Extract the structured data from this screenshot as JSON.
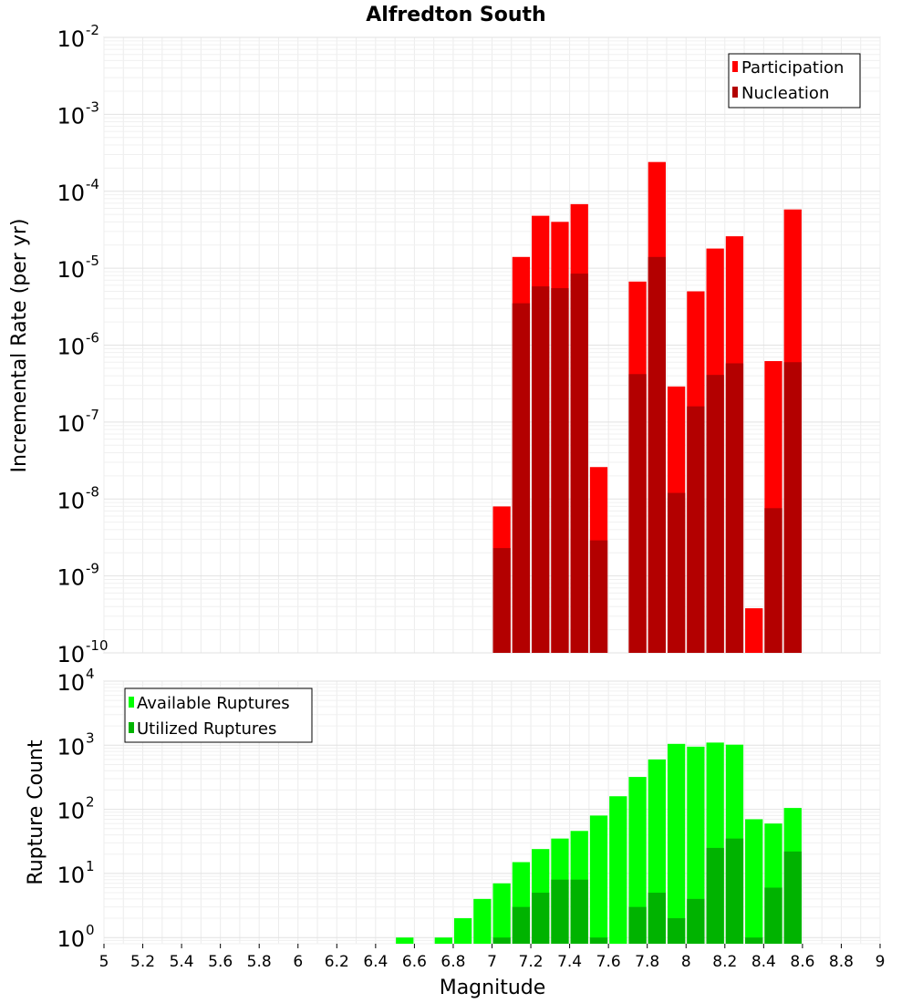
{
  "chart_data": [
    {
      "type": "bar",
      "title": "Alfredton South",
      "xlabel": "",
      "ylabel": "Incremental Rate (per yr)",
      "xlim": [
        5,
        9
      ],
      "ylim": [
        1e-10,
        0.01
      ],
      "yscale": "log",
      "grid": true,
      "legend_position": "top-right",
      "legend": [
        "Participation",
        "Nucleation"
      ],
      "colors": {
        "Participation": "#ff0000",
        "Nucleation": "#b30000"
      },
      "bar_width": 0.1,
      "x": [
        7.0,
        7.1,
        7.2,
        7.3,
        7.4,
        7.5,
        7.7,
        7.8,
        7.9,
        8.0,
        8.1,
        8.2,
        8.3,
        8.4,
        8.5
      ],
      "series": [
        {
          "name": "Participation",
          "values": [
            8e-09,
            1.4e-05,
            4.8e-05,
            4e-05,
            6.8e-05,
            2.6e-08,
            6.7e-06,
            0.00024,
            2.9e-07,
            5e-06,
            1.8e-05,
            2.6e-05,
            3.8e-10,
            6.2e-07,
            5.8e-05
          ]
        },
        {
          "name": "Nucleation",
          "values": [
            2.3e-09,
            3.5e-06,
            5.8e-06,
            5.5e-06,
            8.5e-06,
            2.9e-09,
            4.2e-07,
            1.4e-05,
            1.2e-08,
            1.6e-07,
            4.1e-07,
            5.8e-07,
            0,
            7.6e-09,
            6e-07
          ]
        }
      ],
      "y_ticks": [
        {
          "base": "10",
          "exp": "-10"
        },
        {
          "base": "10",
          "exp": "-9"
        },
        {
          "base": "10",
          "exp": "-8"
        },
        {
          "base": "10",
          "exp": "-7"
        },
        {
          "base": "10",
          "exp": "-6"
        },
        {
          "base": "10",
          "exp": "-5"
        },
        {
          "base": "10",
          "exp": "-4"
        },
        {
          "base": "10",
          "exp": "-3"
        },
        {
          "base": "10",
          "exp": "-2"
        }
      ]
    },
    {
      "type": "bar",
      "title": "",
      "xlabel": "Magnitude",
      "ylabel": "Rupture Count",
      "xlim": [
        5,
        9
      ],
      "ylim": [
        0.8,
        10000.0
      ],
      "yscale": "log",
      "grid": true,
      "legend_position": "top-left",
      "legend": [
        "Available Ruptures",
        "Utilized Ruptures"
      ],
      "colors": {
        "Available Ruptures": "#00ff00",
        "Utilized Ruptures": "#00b300"
      },
      "bar_width": 0.1,
      "x": [
        6.5,
        6.7,
        6.8,
        6.9,
        7.0,
        7.1,
        7.2,
        7.3,
        7.4,
        7.5,
        7.6,
        7.7,
        7.8,
        7.9,
        8.0,
        8.1,
        8.2,
        8.3,
        8.4,
        8.5
      ],
      "series": [
        {
          "name": "Available Ruptures",
          "values": [
            1,
            1,
            2,
            4,
            7,
            15,
            24,
            35,
            46,
            80,
            160,
            320,
            600,
            1050,
            950,
            1100,
            1020,
            70,
            60,
            105
          ]
        },
        {
          "name": "Utilized Ruptures",
          "values": [
            0,
            0,
            0,
            0,
            1,
            3,
            5,
            8,
            8,
            1,
            0,
            3,
            5,
            2,
            4,
            25,
            35,
            1,
            6,
            22
          ]
        }
      ],
      "x_ticks": [
        "5",
        "5.2",
        "5.4",
        "5.6",
        "5.8",
        "6",
        "6.2",
        "6.4",
        "6.6",
        "6.8",
        "7",
        "7.2",
        "7.4",
        "7.6",
        "7.8",
        "8",
        "8.2",
        "8.4",
        "8.6",
        "8.8",
        "9"
      ],
      "y_ticks": [
        {
          "base": "10",
          "exp": "0"
        },
        {
          "base": "10",
          "exp": "1"
        },
        {
          "base": "10",
          "exp": "2"
        },
        {
          "base": "10",
          "exp": "3"
        },
        {
          "base": "10",
          "exp": "4"
        }
      ]
    }
  ]
}
